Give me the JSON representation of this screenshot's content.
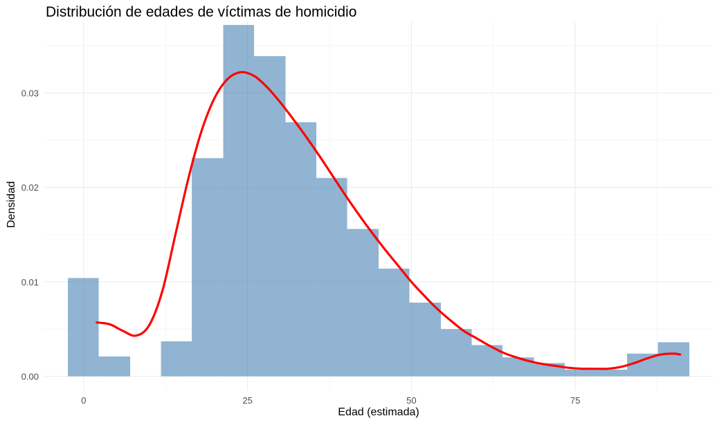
{
  "chart_data": {
    "type": "bar",
    "title": "Distribución de edades de víctimas de homicidio",
    "xlabel": "Edad (estimada)",
    "ylabel": "Densidad",
    "xlim": [
      -6,
      96
    ],
    "ylim": [
      -0.0015,
      0.0375
    ],
    "x_ticks": [
      0,
      25,
      50,
      75
    ],
    "x_tick_labels": [
      "0",
      "25",
      "50",
      "75"
    ],
    "y_ticks": [
      0,
      0.01,
      0.02,
      0.03
    ],
    "y_tick_labels": [
      "0.00",
      "0.01",
      "0.02",
      "0.03"
    ],
    "grid": true,
    "bin_width": 4.74,
    "histogram": [
      {
        "x0": -2.4,
        "x1": 2.3,
        "density": 0.0104
      },
      {
        "x0": 2.3,
        "x1": 7.1,
        "density": 0.0021
      },
      {
        "x0": 7.1,
        "x1": 11.8,
        "density": 0.0
      },
      {
        "x0": 11.8,
        "x1": 16.5,
        "density": 0.0037
      },
      {
        "x0": 16.5,
        "x1": 21.3,
        "density": 0.0231
      },
      {
        "x0": 21.3,
        "x1": 26.0,
        "density": 0.0372
      },
      {
        "x0": 26.0,
        "x1": 30.8,
        "density": 0.0339
      },
      {
        "x0": 30.8,
        "x1": 35.5,
        "density": 0.0269
      },
      {
        "x0": 35.5,
        "x1": 40.2,
        "density": 0.021
      },
      {
        "x0": 40.2,
        "x1": 45.0,
        "density": 0.0156
      },
      {
        "x0": 45.0,
        "x1": 49.7,
        "density": 0.0114
      },
      {
        "x0": 49.7,
        "x1": 54.5,
        "density": 0.0078
      },
      {
        "x0": 54.5,
        "x1": 59.2,
        "density": 0.005
      },
      {
        "x0": 59.2,
        "x1": 63.9,
        "density": 0.0033
      },
      {
        "x0": 63.9,
        "x1": 68.7,
        "density": 0.002
      },
      {
        "x0": 68.7,
        "x1": 73.4,
        "density": 0.0014
      },
      {
        "x0": 73.4,
        "x1": 78.2,
        "density": 0.0007
      },
      {
        "x0": 78.2,
        "x1": 82.9,
        "density": 0.0007
      },
      {
        "x0": 82.9,
        "x1": 87.6,
        "density": 0.0024
      },
      {
        "x0": 87.6,
        "x1": 92.4,
        "density": 0.0036
      }
    ],
    "density_curve": {
      "x": [
        2,
        4,
        6,
        8,
        10,
        12,
        14,
        16,
        18,
        20,
        22,
        24,
        26,
        28,
        30,
        32,
        34,
        36,
        38,
        40,
        42,
        44,
        46,
        48,
        50,
        52,
        54,
        56,
        58,
        60,
        62,
        64,
        66,
        68,
        70,
        72,
        74,
        76,
        78,
        80,
        82,
        84,
        86,
        88,
        90,
        91
      ],
      "y": [
        0.0057,
        0.0055,
        0.0048,
        0.0043,
        0.0054,
        0.009,
        0.015,
        0.021,
        0.026,
        0.0295,
        0.0315,
        0.0322,
        0.0318,
        0.0306,
        0.029,
        0.0272,
        0.0253,
        0.0233,
        0.0212,
        0.0191,
        0.0171,
        0.0152,
        0.0134,
        0.0117,
        0.01,
        0.0085,
        0.0071,
        0.0059,
        0.0048,
        0.004,
        0.0032,
        0.0025,
        0.002,
        0.0016,
        0.0013,
        0.0011,
        0.0009,
        0.0008,
        0.0008,
        0.0008,
        0.001,
        0.0014,
        0.0019,
        0.0023,
        0.0024,
        0.0023
      ]
    },
    "colors": {
      "bars": "#4682b4",
      "bar_opacity": 0.6,
      "curve": "#ff0000",
      "grid": "#ebebeb",
      "tick_text": "#4d4d4d",
      "text": "#000000"
    }
  }
}
